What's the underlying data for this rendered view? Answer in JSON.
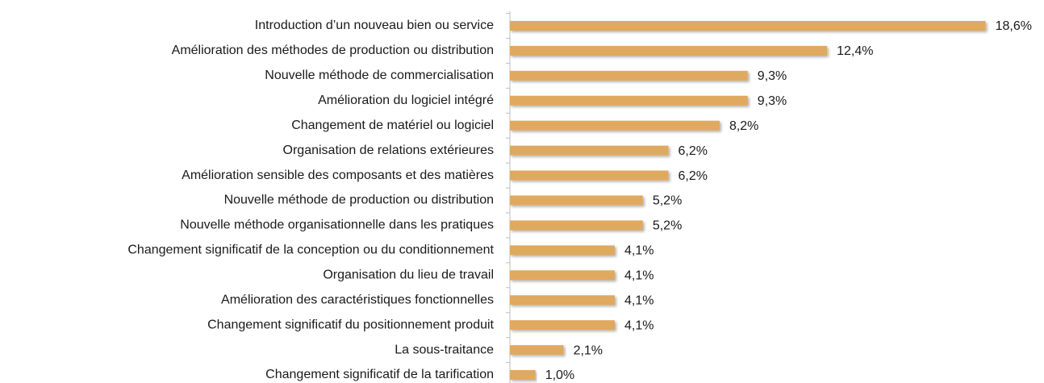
{
  "chart_data": {
    "type": "barh",
    "categories": [
      "Introduction d’un nouveau bien ou service",
      "Amélioration des méthodes  de production ou distribution",
      "Nouvelle méthode de commercialisation",
      "Amélioration du logiciel intégré",
      "Changement de matériel ou logiciel",
      "Organisation de relations extérieures",
      "Amélioration sensible des composants et des matières",
      "Nouvelle méthode de production ou distribution",
      "Nouvelle méthode organisationnelle dans les pratiques",
      "Changement significatif de la conception ou du conditionnement",
      "Organisation du lieu de travail",
      "Amélioration des caractéristiques fonctionnelles",
      "Changement significatif du positionnement produit",
      "La sous-traitance",
      "Changement significatif de la tarification"
    ],
    "values": [
      18.6,
      12.4,
      9.3,
      9.3,
      8.2,
      6.2,
      6.2,
      5.2,
      5.2,
      4.1,
      4.1,
      4.1,
      4.1,
      2.1,
      1.0
    ],
    "value_labels": [
      "18,6%",
      "12,4%",
      "9,3%",
      "9,3%",
      "8,2%",
      "6,2%",
      "6,2%",
      "5,2%",
      "5,2%",
      "4,1%",
      "4,1%",
      "4,1%",
      "4,1%",
      "2,1%",
      "1,0%"
    ],
    "color": "#e0a961"
  }
}
